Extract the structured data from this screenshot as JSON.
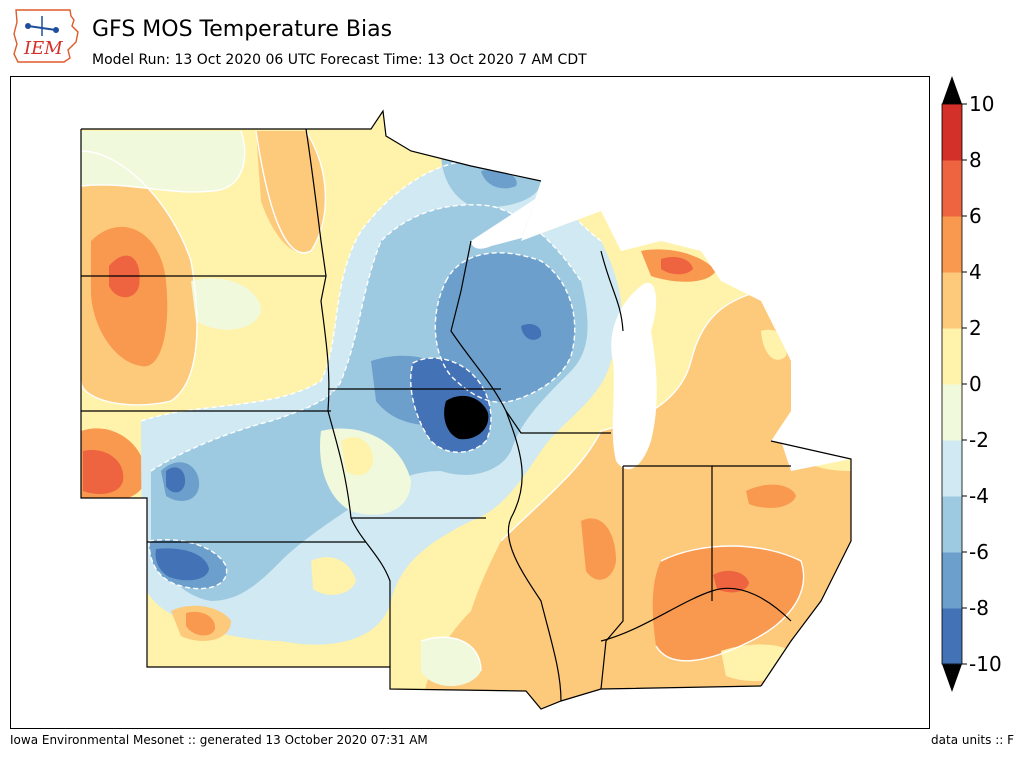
{
  "header": {
    "logo_text": "IEM",
    "title": "GFS MOS Temperature Bias",
    "subtitle": "Model Run: 13 Oct 2020 06 UTC Forecast Time: 13 Oct 2020 7 AM CDT"
  },
  "colorbar": {
    "levels": [
      "-10",
      "-8",
      "-6",
      "-4",
      "-2",
      "0",
      "2",
      "4",
      "6",
      "8",
      "10"
    ],
    "colors": [
      "#4472b6",
      "#6c9fcc",
      "#9ecae1",
      "#d0e9f2",
      "#f1f9dc",
      "#fff2aa",
      "#fdc97b",
      "#f8994f",
      "#ee6340",
      "#d33029"
    ],
    "under_color": "#000000",
    "over_color": "#000000"
  },
  "map": {
    "colors": {
      "very_cold": "#000000",
      "cold_8": "#4472b6",
      "cold_6": "#6c9fcc",
      "cold_4": "#9ecae1",
      "cold_2": "#d0e9f2",
      "neutral_neg": "#f1f9dc",
      "neutral_pos": "#fff2aa",
      "warm_2": "#fdc97b",
      "warm_4": "#f8994f",
      "warm_6": "#ee6340",
      "lake": "#ffffff"
    }
  },
  "footer": {
    "left": "Iowa Environmental Mesonet :: generated 13 October 2020 07:31 AM",
    "right": "data units :: F"
  }
}
